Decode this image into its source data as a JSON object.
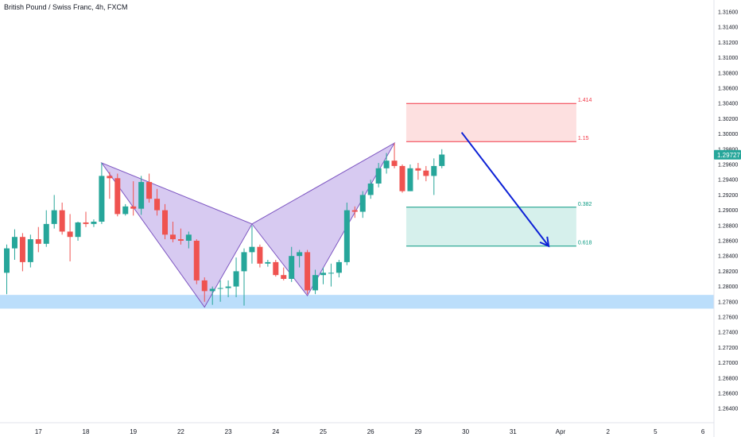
{
  "chart_data": {
    "type": "candlestick",
    "title": "British Pound / Swiss Franc, 4h, FXCM",
    "y_axis": {
      "range": [
        1.2625,
        1.3175
      ],
      "ticks": [
        "1.31600",
        "1.31400",
        "1.31200",
        "1.31000",
        "1.30800",
        "1.30600",
        "1.30400",
        "1.30200",
        "1.30000",
        "1.29800",
        "1.29600",
        "1.29400",
        "1.29200",
        "1.29000",
        "1.28800",
        "1.28600",
        "1.28400",
        "1.28200",
        "1.28000",
        "1.27800",
        "1.27600",
        "1.27400",
        "1.27200",
        "1.27000",
        "1.26800",
        "1.26600",
        "1.26400"
      ]
    },
    "x_axis": {
      "labels": [
        {
          "label": "17",
          "index": 4
        },
        {
          "label": "18",
          "index": 10
        },
        {
          "label": "19",
          "index": 16
        },
        {
          "label": "22",
          "index": 22
        },
        {
          "label": "23",
          "index": 28
        },
        {
          "label": "24",
          "index": 34
        },
        {
          "label": "25",
          "index": 40
        },
        {
          "label": "26",
          "index": 46
        },
        {
          "label": "29",
          "index": 52
        },
        {
          "label": "30",
          "index": 58
        },
        {
          "label": "31",
          "index": 64
        },
        {
          "label": "Apr",
          "index": 70
        },
        {
          "label": "2",
          "index": 76
        },
        {
          "label": "5",
          "index": 82
        },
        {
          "label": "6",
          "index": 88
        }
      ]
    },
    "candles": [
      {
        "o": 1.2818,
        "h": 1.2855,
        "l": 1.279,
        "c": 1.285
      },
      {
        "o": 1.285,
        "h": 1.2875,
        "l": 1.2835,
        "c": 1.2865
      },
      {
        "o": 1.2865,
        "h": 1.287,
        "l": 1.282,
        "c": 1.2832
      },
      {
        "o": 1.2832,
        "h": 1.2868,
        "l": 1.2825,
        "c": 1.2862
      },
      {
        "o": 1.2862,
        "h": 1.2878,
        "l": 1.2845,
        "c": 1.2856
      },
      {
        "o": 1.2856,
        "h": 1.29,
        "l": 1.2852,
        "c": 1.2882
      },
      {
        "o": 1.2882,
        "h": 1.292,
        "l": 1.2876,
        "c": 1.29
      },
      {
        "o": 1.29,
        "h": 1.291,
        "l": 1.2868,
        "c": 1.2872
      },
      {
        "o": 1.2872,
        "h": 1.2895,
        "l": 1.2833,
        "c": 1.2865
      },
      {
        "o": 1.2865,
        "h": 1.2885,
        "l": 1.286,
        "c": 1.2884
      },
      {
        "o": 1.2884,
        "h": 1.2898,
        "l": 1.2878,
        "c": 1.2882
      },
      {
        "o": 1.2882,
        "h": 1.2888,
        "l": 1.2878,
        "c": 1.2885
      },
      {
        "o": 1.2885,
        "h": 1.2962,
        "l": 1.2882,
        "c": 1.2945
      },
      {
        "o": 1.2945,
        "h": 1.295,
        "l": 1.2915,
        "c": 1.2942
      },
      {
        "o": 1.2942,
        "h": 1.2948,
        "l": 1.2892,
        "c": 1.2895
      },
      {
        "o": 1.2895,
        "h": 1.2908,
        "l": 1.2893,
        "c": 1.2905
      },
      {
        "o": 1.2905,
        "h": 1.2938,
        "l": 1.2893,
        "c": 1.2902
      },
      {
        "o": 1.2902,
        "h": 1.2945,
        "l": 1.2894,
        "c": 1.2937
      },
      {
        "o": 1.2937,
        "h": 1.2948,
        "l": 1.291,
        "c": 1.2915
      },
      {
        "o": 1.2915,
        "h": 1.2928,
        "l": 1.2893,
        "c": 1.29
      },
      {
        "o": 1.29,
        "h": 1.2908,
        "l": 1.2862,
        "c": 1.2868
      },
      {
        "o": 1.2868,
        "h": 1.2885,
        "l": 1.2858,
        "c": 1.2862
      },
      {
        "o": 1.2862,
        "h": 1.2876,
        "l": 1.2855,
        "c": 1.286
      },
      {
        "o": 1.286,
        "h": 1.2872,
        "l": 1.285,
        "c": 1.2868
      },
      {
        "o": 1.286,
        "h": 1.2862,
        "l": 1.2803,
        "c": 1.2808
      },
      {
        "o": 1.2808,
        "h": 1.2812,
        "l": 1.278,
        "c": 1.2794
      },
      {
        "o": 1.2794,
        "h": 1.28,
        "l": 1.2776,
        "c": 1.2797
      },
      {
        "o": 1.2797,
        "h": 1.2808,
        "l": 1.278,
        "c": 1.2798
      },
      {
        "o": 1.2798,
        "h": 1.2808,
        "l": 1.2786,
        "c": 1.28
      },
      {
        "o": 1.28,
        "h": 1.2838,
        "l": 1.2786,
        "c": 1.282
      },
      {
        "o": 1.282,
        "h": 1.285,
        "l": 1.2775,
        "c": 1.2845
      },
      {
        "o": 1.2845,
        "h": 1.288,
        "l": 1.283,
        "c": 1.2852
      },
      {
        "o": 1.2852,
        "h": 1.2855,
        "l": 1.2825,
        "c": 1.283
      },
      {
        "o": 1.283,
        "h": 1.2835,
        "l": 1.2826,
        "c": 1.2832
      },
      {
        "o": 1.2832,
        "h": 1.2835,
        "l": 1.2813,
        "c": 1.2815
      },
      {
        "o": 1.2815,
        "h": 1.2825,
        "l": 1.2808,
        "c": 1.281
      },
      {
        "o": 1.281,
        "h": 1.2852,
        "l": 1.2806,
        "c": 1.284
      },
      {
        "o": 1.284,
        "h": 1.2848,
        "l": 1.2825,
        "c": 1.2845
      },
      {
        "o": 1.2845,
        "h": 1.2848,
        "l": 1.279,
        "c": 1.2795
      },
      {
        "o": 1.2795,
        "h": 1.2822,
        "l": 1.279,
        "c": 1.2815
      },
      {
        "o": 1.2815,
        "h": 1.2825,
        "l": 1.2803,
        "c": 1.2818
      },
      {
        "o": 1.2818,
        "h": 1.283,
        "l": 1.28,
        "c": 1.2818
      },
      {
        "o": 1.2818,
        "h": 1.2835,
        "l": 1.2812,
        "c": 1.2832
      },
      {
        "o": 1.2832,
        "h": 1.291,
        "l": 1.2828,
        "c": 1.29
      },
      {
        "o": 1.29,
        "h": 1.2905,
        "l": 1.289,
        "c": 1.2898
      },
      {
        "o": 1.2898,
        "h": 1.2925,
        "l": 1.289,
        "c": 1.292
      },
      {
        "o": 1.292,
        "h": 1.294,
        "l": 1.2915,
        "c": 1.2935
      },
      {
        "o": 1.2935,
        "h": 1.2962,
        "l": 1.293,
        "c": 1.2955
      },
      {
        "o": 1.2955,
        "h": 1.2975,
        "l": 1.2948,
        "c": 1.2965
      },
      {
        "o": 1.2965,
        "h": 1.2988,
        "l": 1.2955,
        "c": 1.2958
      },
      {
        "o": 1.2958,
        "h": 1.296,
        "l": 1.2923,
        "c": 1.2925
      },
      {
        "o": 1.2925,
        "h": 1.296,
        "l": 1.2925,
        "c": 1.2955
      },
      {
        "o": 1.2955,
        "h": 1.2962,
        "l": 1.294,
        "c": 1.2952
      },
      {
        "o": 1.2952,
        "h": 1.2958,
        "l": 1.2938,
        "c": 1.2945
      },
      {
        "o": 1.2945,
        "h": 1.2968,
        "l": 1.292,
        "c": 1.2958
      },
      {
        "o": 1.2958,
        "h": 1.298,
        "l": 1.2955,
        "c": 1.2973
      }
    ],
    "current_price": {
      "value": 1.29727,
      "label": "1.29727"
    },
    "pattern": {
      "type": "harmonic",
      "points": [
        {
          "index": 12,
          "price": 1.2962
        },
        {
          "index": 25,
          "price": 1.2773
        },
        {
          "index": 31,
          "price": 1.2882
        },
        {
          "index": 38,
          "price": 1.2788
        },
        {
          "index": 49,
          "price": 1.2988
        }
      ]
    },
    "support_zone": {
      "from_price": 1.2771,
      "to_price": 1.2789
    },
    "levels": [
      {
        "label": "1.414",
        "price": 1.304,
        "color": "#f23645"
      },
      {
        "label": "1.15",
        "price": 1.299,
        "color": "#f23645"
      },
      {
        "label": "0.382",
        "price": 1.2904,
        "color": "#089981"
      },
      {
        "label": "0.618",
        "price": 1.2853,
        "color": "#089981"
      }
    ],
    "sell_zone": {
      "from_price": 1.299,
      "to_price": 1.304,
      "start_index": 50.5,
      "end_index": 72
    },
    "target_zone": {
      "from_price": 1.2853,
      "to_price": 1.2904,
      "start_index": 50.5,
      "end_index": 72
    },
    "arrow": {
      "from": {
        "index": 57.5,
        "price": 1.3002
      },
      "to": {
        "index": 68.5,
        "price": 1.2853
      }
    },
    "colors": {
      "up": "#26a69a",
      "down": "#ef5350",
      "pattern_fill": "#c9b8ec",
      "pattern_line": "#7e57c2",
      "support": "#bbdefb",
      "sell_fill": "#fde0e0",
      "target_fill": "#d6f0ec",
      "arrow": "#0d21d6",
      "price_tag": "#26a69a"
    }
  }
}
